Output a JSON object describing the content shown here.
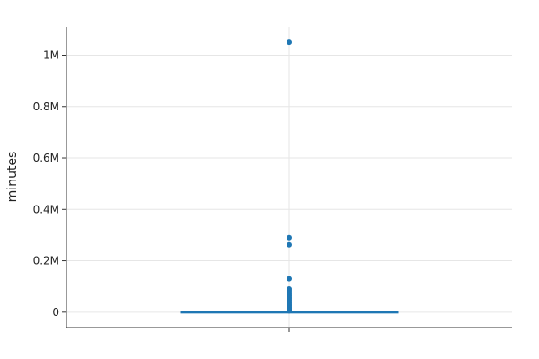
{
  "chart_data": {
    "type": "box",
    "title": "",
    "xlabel": "",
    "ylabel": "minutes",
    "ylim": [
      -60000,
      1110000
    ],
    "y_ticks": [
      {
        "value": 0,
        "label": "0"
      },
      {
        "value": 200000,
        "label": "0.2M"
      },
      {
        "value": 400000,
        "label": "0.4M"
      },
      {
        "value": 600000,
        "label": "0.6M"
      },
      {
        "value": 800000,
        "label": "0.8M"
      },
      {
        "value": 1000000,
        "label": "1M"
      }
    ],
    "grid": true,
    "series": [
      {
        "color": "#1f77b4",
        "box": {
          "min": 0,
          "q1": 0,
          "median": 0,
          "q3": 0,
          "max": 0
        },
        "outliers": [
          1050000,
          290000,
          262000,
          130000,
          90000,
          83000,
          76000,
          70000,
          64000,
          58000,
          52000,
          46000,
          40000,
          35000,
          30000,
          25000,
          20000,
          16000,
          12000,
          8000,
          5000
        ]
      }
    ]
  }
}
